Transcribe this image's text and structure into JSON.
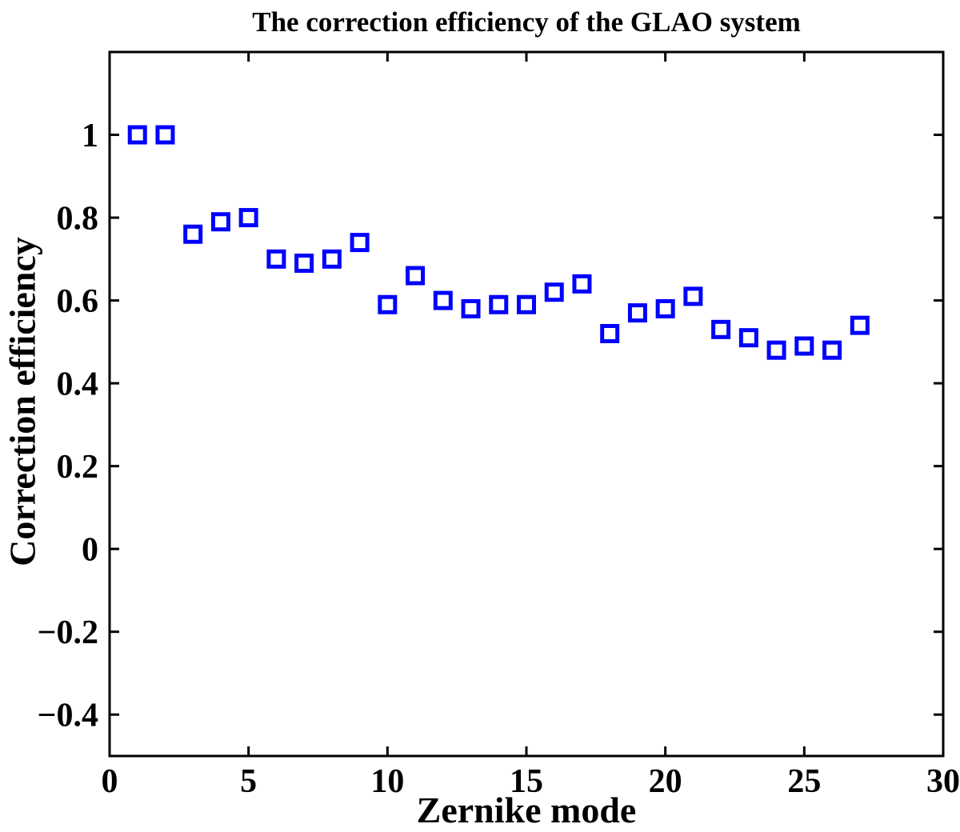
{
  "figure": {
    "background_color": "#ffffff",
    "text_color": "#000000"
  },
  "chart_data": {
    "type": "scatter",
    "title": "The correction efficiency of the GLAO system",
    "xlabel": "Zernike mode",
    "ylabel": "Correction efficiency",
    "x": [
      1,
      2,
      3,
      4,
      5,
      6,
      7,
      8,
      9,
      10,
      11,
      12,
      13,
      14,
      15,
      16,
      17,
      18,
      19,
      20,
      21,
      22,
      23,
      24,
      25,
      26,
      27
    ],
    "y": [
      1.0,
      1.0,
      0.76,
      0.79,
      0.8,
      0.7,
      0.69,
      0.7,
      0.74,
      0.59,
      0.66,
      0.6,
      0.58,
      0.59,
      0.59,
      0.62,
      0.64,
      0.52,
      0.57,
      0.58,
      0.61,
      0.53,
      0.51,
      0.48,
      0.49,
      0.48,
      0.54
    ],
    "xlim": [
      0,
      30
    ],
    "ylim": [
      -0.5,
      1.2
    ],
    "xticks": [
      0,
      5,
      10,
      15,
      20,
      25,
      30
    ],
    "xtick_labels": [
      "0",
      "5",
      "10",
      "15",
      "20",
      "25",
      "30"
    ],
    "yticks": [
      1,
      0.8,
      0.6,
      0.4,
      0.2,
      0,
      -0.2,
      -0.4
    ],
    "ytick_labels": [
      "1",
      "0.8",
      "0.6",
      "0.4",
      "0.2",
      "0",
      "−0.2",
      "−0.4"
    ],
    "grid": false,
    "box": true,
    "tick_direction": "in",
    "axis_color": "#000000",
    "marker": {
      "shape": "square",
      "color": "#0000ff",
      "outer_size": 24,
      "stroke_width": 5,
      "fill": "none"
    }
  }
}
